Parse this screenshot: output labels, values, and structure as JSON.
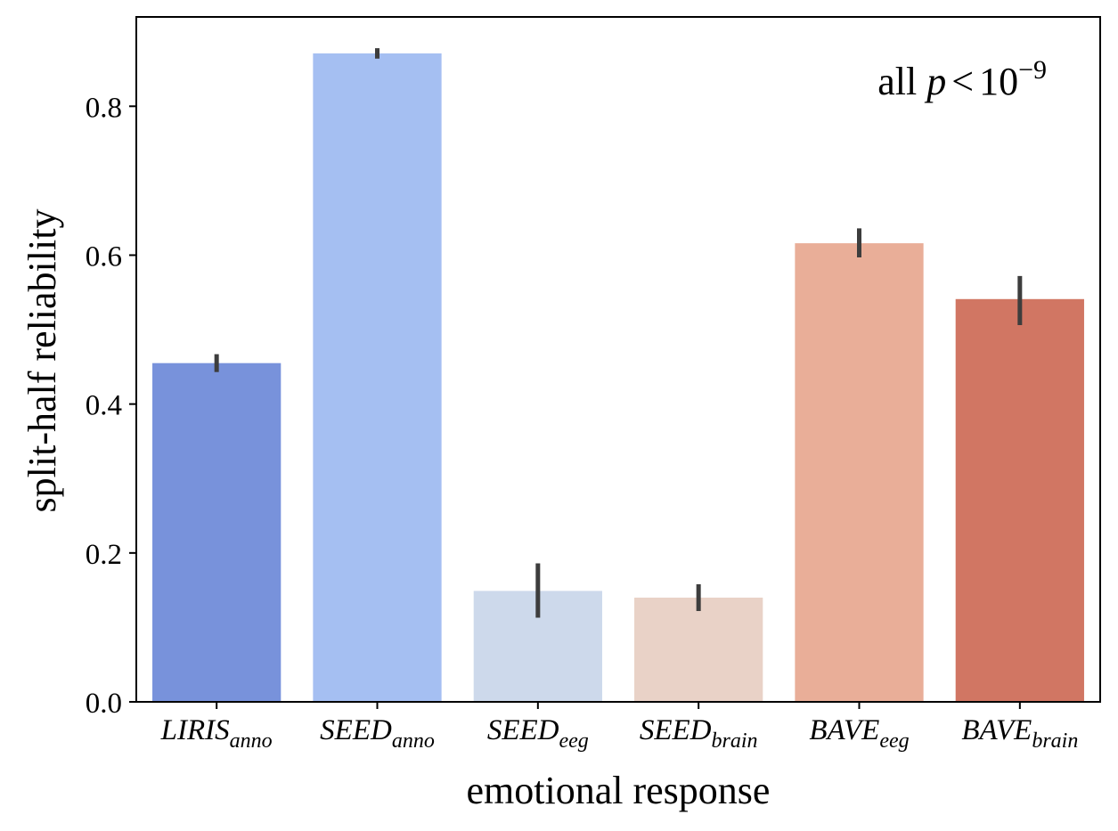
{
  "chart_data": {
    "type": "bar",
    "title": "",
    "xlabel": "emotional response",
    "ylabel": "split-half reliability",
    "ylim": [
      0,
      0.92
    ],
    "yticks": [
      0.0,
      0.2,
      0.4,
      0.6,
      0.8
    ],
    "ytick_labels": [
      "0.0",
      "0.2",
      "0.4",
      "0.6",
      "0.8"
    ],
    "grid": false,
    "categories": [
      {
        "base": "LIRIS",
        "sub": "anno"
      },
      {
        "base": "SEED",
        "sub": "anno"
      },
      {
        "base": "SEED",
        "sub": "eeg"
      },
      {
        "base": "SEED",
        "sub": "brain"
      },
      {
        "base": "BAVE",
        "sub": "eeg"
      },
      {
        "base": "BAVE",
        "sub": "brain"
      }
    ],
    "values": [
      0.455,
      0.871,
      0.149,
      0.14,
      0.616,
      0.541
    ],
    "error_low": [
      0.443,
      0.864,
      0.113,
      0.122,
      0.597,
      0.506
    ],
    "error_high": [
      0.467,
      0.878,
      0.186,
      0.158,
      0.636,
      0.572
    ],
    "colors": [
      "#7892db",
      "#a5bff2",
      "#cdd9eb",
      "#e9d2c7",
      "#e9ae98",
      "#d17663"
    ],
    "error_color": "#3d3d3d",
    "annotation": {
      "prefix": "all",
      "variable": "p",
      "operator": "<",
      "base": "10",
      "exponent": "−9",
      "position": "top-right"
    }
  }
}
